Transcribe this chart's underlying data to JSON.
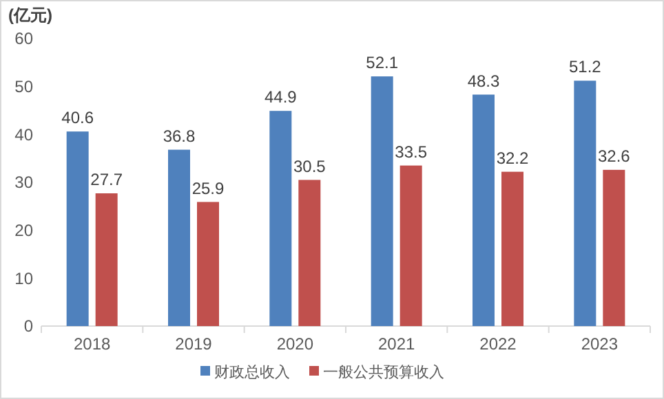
{
  "chart_data": {
    "type": "bar",
    "ylabel": "(亿元)",
    "categories": [
      "2018",
      "2019",
      "2020",
      "2021",
      "2022",
      "2023"
    ],
    "series": [
      {
        "name": "财政总收入",
        "color": "#4f81bd",
        "values": [
          40.6,
          36.8,
          44.9,
          52.1,
          48.3,
          51.2
        ]
      },
      {
        "name": "一般公共预算收入",
        "color": "#c0504d",
        "values": [
          27.7,
          25.9,
          30.5,
          33.5,
          32.2,
          32.6
        ]
      }
    ],
    "ylim": [
      0,
      60
    ],
    "yticks": [
      0,
      10,
      20,
      30,
      40,
      50,
      60
    ],
    "grid": false,
    "legend": "bottom",
    "data_labels": true
  }
}
